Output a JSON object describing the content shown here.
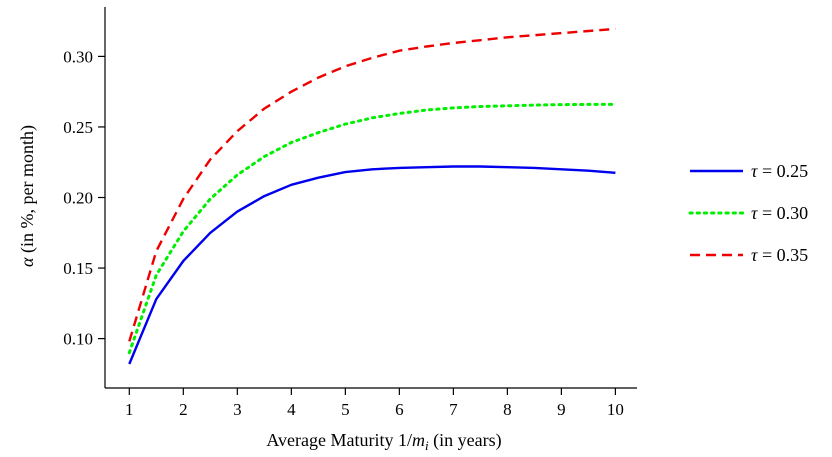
{
  "chart_data": {
    "type": "line",
    "title": "",
    "xlabel": "Average Maturity 1/m_i (in years)",
    "ylabel": "α (in %, per month)",
    "xlabel_parts": {
      "pre": "Average Maturity 1/",
      "var": "m",
      "sub": "i",
      "post": " (in years)"
    },
    "ylabel_parts": {
      "sym": "α",
      "rest": " (in %, per month)"
    },
    "xlim": [
      0.55,
      10.4
    ],
    "ylim": [
      0.065,
      0.335
    ],
    "xticks": [
      1,
      2,
      3,
      4,
      5,
      6,
      7,
      8,
      9,
      10
    ],
    "yticks": [
      0.1,
      0.15,
      0.2,
      0.25,
      0.3
    ],
    "ytick_labels": [
      "0.10",
      "0.15",
      "0.20",
      "0.25",
      "0.30"
    ],
    "grid": false,
    "legend_position": "right",
    "x": [
      1,
      1.5,
      2,
      2.5,
      3,
      3.5,
      4,
      4.5,
      5,
      5.5,
      6,
      6.5,
      7,
      7.5,
      8,
      8.5,
      9,
      9.5,
      10
    ],
    "series": [
      {
        "name": "τ = 0.25",
        "name_parts": {
          "sym": "τ",
          "rest": " = 0.25"
        },
        "color": "#0000ee",
        "dash": "solid",
        "values": [
          0.082,
          0.128,
          0.155,
          0.175,
          0.19,
          0.201,
          0.209,
          0.214,
          0.218,
          0.22,
          0.221,
          0.2215,
          0.222,
          0.222,
          0.2215,
          0.221,
          0.22,
          0.219,
          0.2175
        ]
      },
      {
        "name": "τ = 0.30",
        "name_parts": {
          "sym": "τ",
          "rest": " = 0.30"
        },
        "color": "#00ee00",
        "dash": "dotted",
        "values": [
          0.09,
          0.145,
          0.176,
          0.199,
          0.216,
          0.229,
          0.239,
          0.246,
          0.252,
          0.2565,
          0.2595,
          0.262,
          0.2635,
          0.2645,
          0.265,
          0.2655,
          0.2658,
          0.266,
          0.266
        ]
      },
      {
        "name": "τ = 0.35",
        "name_parts": {
          "sym": "τ",
          "rest": " = 0.35"
        },
        "color": "#ee0000",
        "dash": "dashed",
        "values": [
          0.098,
          0.162,
          0.199,
          0.227,
          0.247,
          0.263,
          0.275,
          0.285,
          0.293,
          0.299,
          0.304,
          0.307,
          0.3095,
          0.3115,
          0.3135,
          0.315,
          0.3165,
          0.318,
          0.3195
        ]
      }
    ]
  }
}
